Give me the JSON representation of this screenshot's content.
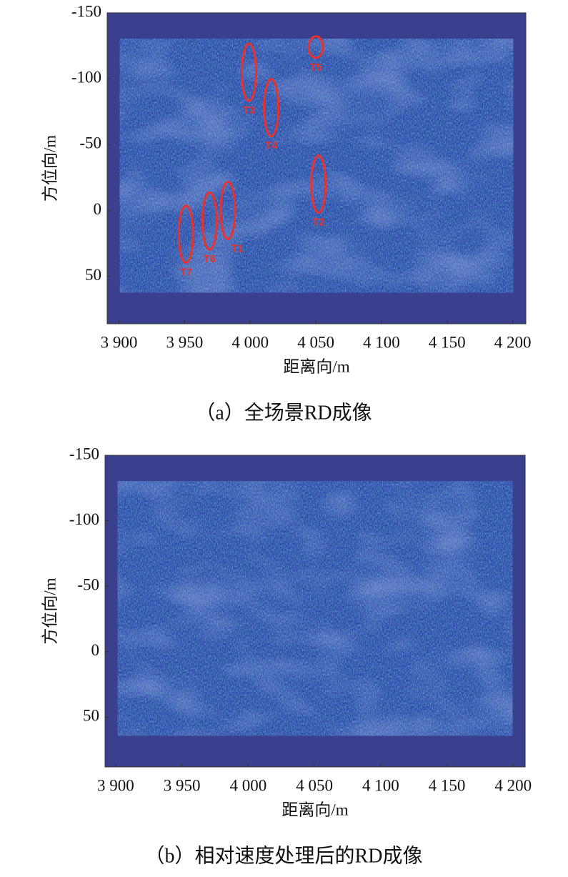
{
  "chart_data": [
    {
      "type": "heatmap",
      "caption": "（a）全场景RD成像",
      "xlabel": "距离向/m",
      "ylabel": "方位向/m",
      "xlim": [
        3891,
        4210
      ],
      "ylim": [
        -150,
        86
      ],
      "y_inverted": true,
      "xticks": [
        {
          "value": 3900,
          "label": "3 900"
        },
        {
          "value": 3950,
          "label": "3 950"
        },
        {
          "value": 4000,
          "label": "4 000"
        },
        {
          "value": 4050,
          "label": "4 050"
        },
        {
          "value": 4100,
          "label": "4 100"
        },
        {
          "value": 4150,
          "label": "4 150"
        },
        {
          "value": 4200,
          "label": "4 200"
        }
      ],
      "yticks": [
        -150,
        -100,
        -50,
        0,
        50
      ],
      "annotation_color": "#e8322e",
      "annotations": [
        {
          "text": "T1",
          "x": 3983,
          "y": 0
        },
        {
          "text": "T2",
          "x": 4052,
          "y": -20
        },
        {
          "text": "T3",
          "x": 3999,
          "y": -105
        },
        {
          "text": "T4",
          "x": 4016,
          "y": -78
        },
        {
          "text": "T5",
          "x": 4050,
          "y": -124
        },
        {
          "text": "T6",
          "x": 3969,
          "y": 8
        },
        {
          "text": "T7",
          "x": 3951,
          "y": 18
        }
      ]
    },
    {
      "type": "heatmap",
      "caption": "（b）相对速度处理后的RD成像",
      "xlabel": "距离向/m",
      "ylabel": "方位向/m",
      "xlim": [
        3892,
        4209
      ],
      "ylim": [
        -150,
        88
      ],
      "y_inverted": true,
      "xticks": [
        {
          "value": 3900,
          "label": "3 900"
        },
        {
          "value": 3950,
          "label": "3 950"
        },
        {
          "value": 4000,
          "label": "4 000"
        },
        {
          "value": 4050,
          "label": "4 050"
        },
        {
          "value": 4100,
          "label": "4 100"
        },
        {
          "value": 4150,
          "label": "4 150"
        },
        {
          "value": 4200,
          "label": "4 200"
        }
      ],
      "yticks": [
        -150,
        -100,
        -50,
        0,
        50
      ]
    }
  ]
}
